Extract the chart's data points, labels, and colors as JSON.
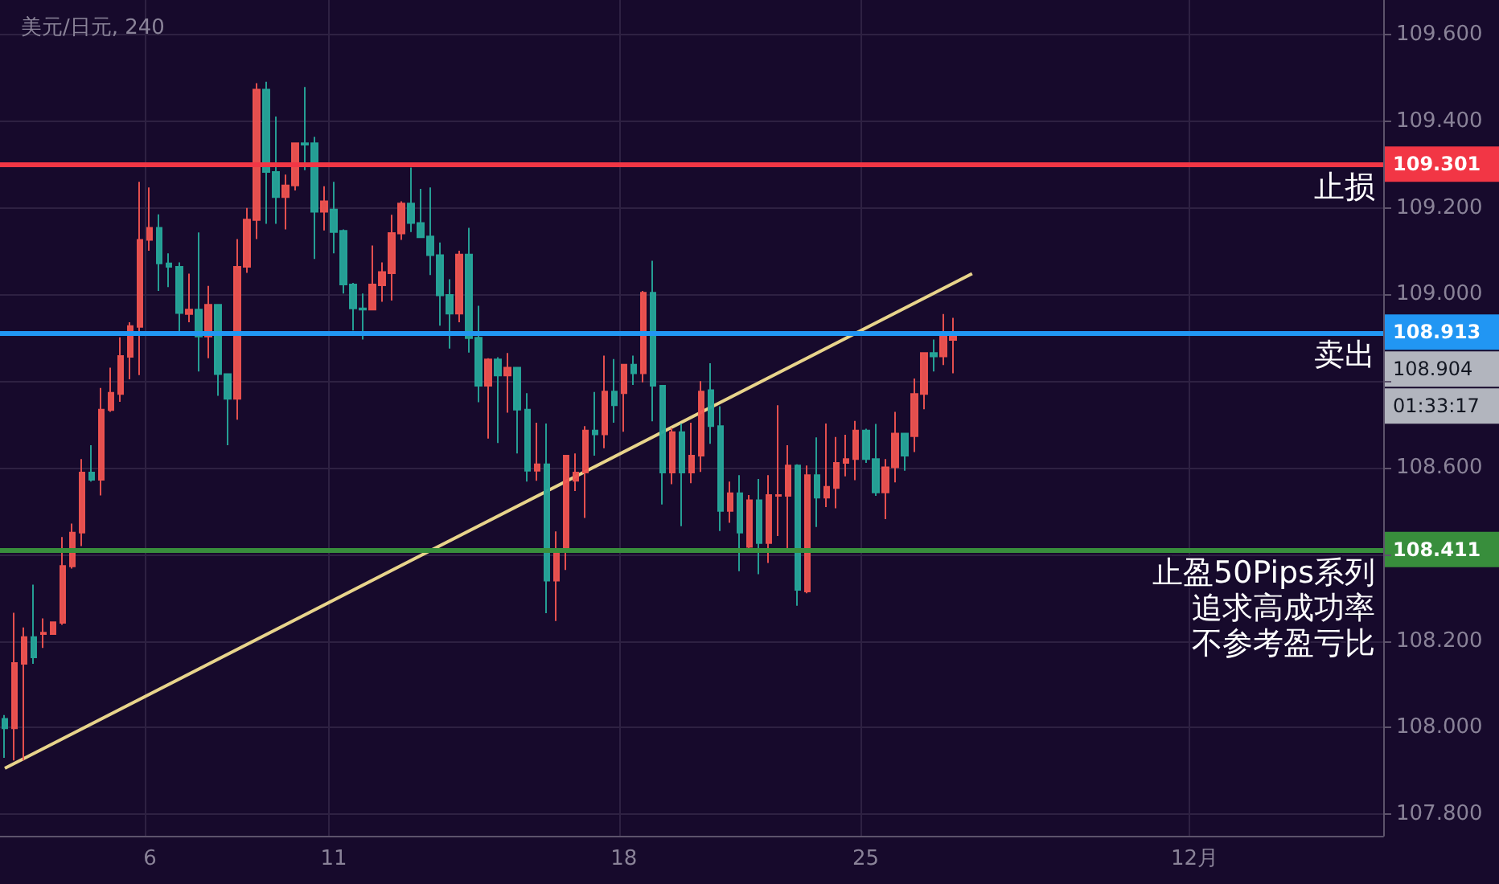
{
  "chart_data": {
    "type": "candlestick",
    "title": "美元/日元, 240",
    "categories": [
      null,
      null,
      null,
      null,
      null,
      null,
      null,
      null,
      null,
      null,
      null,
      null,
      null,
      null,
      null,
      "6",
      null,
      null,
      null,
      null,
      null,
      null,
      null,
      null,
      null,
      null,
      null,
      null,
      null,
      null,
      null,
      null,
      null,
      null,
      "11",
      null,
      null,
      null,
      null,
      null,
      null,
      null,
      null,
      null,
      null,
      null,
      null,
      null,
      null,
      null,
      null,
      null,
      null,
      null,
      null,
      null,
      null,
      null,
      null,
      null,
      null,
      null,
      null,
      null,
      "18",
      null,
      null,
      null,
      null,
      null,
      null,
      null,
      null,
      null,
      null,
      null,
      null,
      null,
      null,
      null,
      null,
      null,
      null,
      null,
      null,
      null,
      null,
      null,
      null,
      "25",
      null,
      null,
      null,
      null,
      null,
      null,
      null,
      null,
      null,
      null,
      null,
      null,
      null,
      null,
      null,
      null,
      null,
      null,
      null,
      null,
      null,
      null,
      null,
      null,
      null,
      null,
      null,
      null,
      null,
      null,
      null,
      null,
      null,
      "12月",
      null,
      null,
      null,
      null,
      null,
      null,
      null,
      null,
      null,
      null,
      null,
      null,
      null,
      null,
      null,
      null,
      null,
      null,
      null
    ],
    "series": [
      {
        "type": "candlestick",
        "ohlc": [
          [
            108.02,
            108.029,
            107.93,
            107.998
          ],
          [
            107.998,
            108.265,
            107.924,
            108.149
          ],
          [
            108.147,
            108.231,
            107.924,
            108.209
          ],
          [
            108.209,
            108.33,
            108.147,
            108.162
          ],
          [
            108.216,
            108.252,
            108.184,
            108.219
          ],
          [
            108.216,
            108.245,
            108.214,
            108.243
          ],
          [
            108.242,
            108.44,
            108.237,
            108.373
          ],
          [
            108.372,
            108.471,
            108.367,
            108.45
          ],
          [
            108.45,
            108.62,
            108.419,
            108.589
          ],
          [
            108.589,
            108.652,
            108.568,
            108.572
          ],
          [
            108.572,
            108.784,
            108.536,
            108.734
          ],
          [
            108.733,
            108.831,
            108.729,
            108.773
          ],
          [
            108.77,
            108.901,
            108.752,
            108.858
          ],
          [
            108.856,
            108.936,
            108.804,
            108.927
          ],
          [
            108.925,
            109.26,
            108.814,
            109.126
          ],
          [
            109.126,
            109.247,
            109.101,
            109.154
          ],
          [
            109.154,
            109.185,
            109.008,
            109.072
          ],
          [
            109.072,
            109.095,
            109.017,
            109.064
          ],
          [
            109.064,
            109.074,
            108.909,
            108.957
          ],
          [
            108.955,
            109.048,
            108.936,
            108.965
          ],
          [
            108.965,
            109.143,
            108.822,
            108.903
          ],
          [
            108.903,
            109.02,
            108.853,
            108.976
          ],
          [
            108.976,
            108.977,
            108.766,
            108.816
          ],
          [
            108.816,
            108.816,
            108.652,
            108.759
          ],
          [
            108.759,
            109.128,
            108.711,
            109.064
          ],
          [
            109.064,
            109.2,
            109.05,
            109.173
          ],
          [
            109.172,
            109.488,
            109.128,
            109.473
          ],
          [
            109.473,
            109.491,
            109.163,
            109.283
          ],
          [
            109.283,
            109.411,
            109.163,
            109.225
          ],
          [
            109.225,
            109.277,
            109.15,
            109.252
          ],
          [
            109.252,
            109.351,
            109.24,
            109.349
          ],
          [
            109.349,
            109.479,
            109.287,
            109.346
          ],
          [
            109.349,
            109.364,
            109.082,
            109.191
          ],
          [
            109.191,
            109.25,
            109.148,
            109.215
          ],
          [
            109.196,
            109.26,
            109.095,
            109.144
          ],
          [
            109.147,
            109.15,
            109.002,
            109.023
          ],
          [
            109.023,
            109.027,
            108.917,
            108.968
          ],
          [
            108.968,
            109.002,
            108.896,
            108.965
          ],
          [
            108.965,
            109.113,
            108.965,
            109.023
          ],
          [
            109.021,
            109.074,
            108.983,
            109.052
          ],
          [
            109.049,
            109.184,
            108.986,
            109.142
          ],
          [
            109.141,
            109.215,
            109.126,
            109.21
          ],
          [
            109.21,
            109.293,
            109.144,
            109.165
          ],
          [
            109.165,
            109.244,
            109.132,
            109.132
          ],
          [
            109.134,
            109.247,
            109.045,
            109.091
          ],
          [
            109.091,
            109.12,
            108.928,
            108.998
          ],
          [
            108.999,
            109.035,
            108.875,
            108.956
          ],
          [
            108.956,
            109.101,
            108.936,
            109.092
          ],
          [
            109.092,
            109.154,
            108.866,
            108.899
          ],
          [
            108.9,
            108.974,
            108.751,
            108.789
          ],
          [
            108.789,
            108.853,
            108.667,
            108.85
          ],
          [
            108.85,
            108.855,
            108.657,
            108.813
          ],
          [
            108.813,
            108.865,
            108.727,
            108.831
          ],
          [
            108.831,
            108.831,
            108.633,
            108.734
          ],
          [
            108.734,
            108.772,
            108.568,
            108.593
          ],
          [
            108.593,
            108.704,
            108.57,
            108.608
          ],
          [
            108.608,
            108.702,
            108.264,
            108.339
          ],
          [
            108.339,
            108.453,
            108.246,
            108.404
          ],
          [
            108.405,
            108.628,
            108.364,
            108.628
          ],
          [
            108.57,
            108.633,
            108.546,
            108.589
          ],
          [
            108.589,
            108.696,
            108.484,
            108.686
          ],
          [
            108.686,
            108.775,
            108.628,
            108.677
          ],
          [
            108.677,
            108.859,
            108.645,
            108.776
          ],
          [
            108.776,
            108.851,
            108.704,
            108.744
          ],
          [
            108.772,
            108.838,
            108.683,
            108.838
          ],
          [
            108.838,
            108.859,
            108.791,
            108.818
          ],
          [
            108.818,
            109.008,
            108.797,
            109.004
          ],
          [
            109.004,
            109.078,
            108.707,
            108.789
          ],
          [
            108.789,
            108.789,
            108.515,
            108.589
          ],
          [
            108.589,
            108.692,
            108.562,
            108.682
          ],
          [
            108.682,
            108.702,
            108.465,
            108.589
          ],
          [
            108.589,
            108.704,
            108.564,
            108.628
          ],
          [
            108.628,
            108.8,
            108.59,
            108.776
          ],
          [
            108.779,
            108.841,
            108.655,
            108.696
          ],
          [
            108.696,
            108.742,
            108.454,
            108.5
          ],
          [
            108.5,
            108.568,
            108.473,
            108.541
          ],
          [
            108.541,
            108.583,
            108.361,
            108.45
          ],
          [
            108.417,
            108.537,
            108.413,
            108.525
          ],
          [
            108.525,
            108.574,
            108.354,
            108.426
          ],
          [
            108.426,
            108.583,
            108.38,
            108.537
          ],
          [
            108.535,
            108.744,
            108.442,
            108.537
          ],
          [
            108.535,
            108.652,
            108.413,
            108.605
          ],
          [
            108.605,
            108.608,
            108.281,
            108.318
          ],
          [
            108.314,
            108.605,
            108.31,
            108.583
          ],
          [
            108.583,
            108.67,
            108.463,
            108.531
          ],
          [
            108.531,
            108.702,
            108.509,
            108.556
          ],
          [
            108.553,
            108.671,
            108.506,
            108.611
          ],
          [
            108.611,
            108.676,
            108.58,
            108.62
          ],
          [
            108.62,
            108.708,
            108.571,
            108.686
          ],
          [
            108.686,
            108.69,
            108.611,
            108.62
          ],
          [
            108.62,
            108.701,
            108.535,
            108.543
          ],
          [
            108.543,
            108.62,
            108.481,
            108.601
          ],
          [
            108.601,
            108.729,
            108.566,
            108.679
          ],
          [
            108.679,
            108.679,
            108.593,
            108.628
          ],
          [
            108.673,
            108.806,
            108.636,
            108.77
          ],
          [
            108.77,
            108.865,
            108.735,
            108.865
          ],
          [
            108.865,
            108.896,
            108.822,
            108.857
          ],
          [
            108.857,
            108.955,
            108.837,
            108.905
          ],
          [
            108.895,
            108.946,
            108.818,
            108.904
          ],
          null,
          null,
          null,
          null,
          null,
          null,
          null,
          null,
          null,
          null,
          null,
          null,
          null,
          null,
          null,
          null,
          null,
          null,
          null,
          null,
          null,
          null,
          null,
          null,
          null,
          null,
          null,
          null,
          null,
          null,
          null,
          null,
          null,
          null,
          null,
          null,
          null,
          null,
          null,
          null,
          null,
          null,
          null,
          null
        ],
        "colors": [
          "#26a69a",
          "#ef5350",
          "#ef5350",
          "#26a69a",
          "#ef5350",
          "#ef5350",
          "#ef5350",
          "#ef5350",
          "#ef5350",
          "#26a69a",
          "#ef5350",
          "#ef5350",
          "#ef5350",
          "#ef5350",
          "#ef5350",
          "#ef5350",
          "#26a69a",
          "#26a69a",
          "#26a69a",
          "#ef5350",
          "#26a69a",
          "#ef5350",
          "#26a69a",
          "#26a69a",
          "#ef5350",
          "#ef5350",
          "#ef5350",
          "#26a69a",
          "#26a69a",
          "#ef5350",
          "#ef5350",
          "#26a69a",
          "#26a69a",
          "#ef5350",
          "#26a69a",
          "#26a69a",
          "#26a69a",
          "#26a69a",
          "#ef5350",
          "#ef5350",
          "#ef5350",
          "#ef5350",
          "#26a69a",
          "#26a69a",
          "#26a69a",
          "#26a69a",
          "#26a69a",
          "#ef5350",
          "#26a69a",
          "#26a69a",
          "#ef5350",
          "#26a69a",
          "#ef5350",
          "#26a69a",
          "#26a69a",
          "#ef5350",
          "#26a69a",
          "#ef5350",
          "#ef5350",
          "#ef5350",
          "#ef5350",
          "#26a69a",
          "#ef5350",
          "#26a69a",
          "#ef5350",
          "#26a69a",
          "#ef5350",
          "#26a69a",
          "#26a69a",
          "#ef5350",
          "#26a69a",
          "#ef5350",
          "#ef5350",
          "#26a69a",
          "#26a69a",
          "#ef5350",
          "#26a69a",
          "#ef5350",
          "#26a69a",
          "#ef5350",
          "#ef5350",
          "#ef5350",
          "#26a69a",
          "#ef5350",
          "#26a69a",
          "#ef5350",
          "#ef5350",
          "#ef5350",
          "#ef5350",
          "#26a69a",
          "#26a69a",
          "#ef5350",
          "#ef5350",
          "#26a69a",
          "#ef5350",
          "#ef5350",
          "#26a69a",
          "#ef5350",
          "#ef5350",
          null,
          null,
          null,
          null,
          null,
          null,
          null,
          null,
          null,
          null,
          null,
          null,
          null,
          null,
          null,
          null,
          null,
          null,
          null,
          null,
          null,
          null,
          null,
          null,
          null,
          null,
          null,
          null,
          null,
          null,
          null,
          null,
          null,
          null,
          null,
          null,
          null,
          null,
          null,
          null,
          null,
          null,
          null,
          null
        ]
      },
      {
        "type": "line",
        "color": "#e8d48b",
        "marker": "none",
        "values": [
          107.906,
          null,
          null,
          null,
          null,
          null,
          null,
          null,
          null,
          null,
          null,
          null,
          null,
          null,
          null,
          null,
          null,
          null,
          null,
          null,
          null,
          null,
          null,
          null,
          null,
          null,
          null,
          null,
          null,
          null,
          null,
          null,
          null,
          null,
          null,
          null,
          null,
          null,
          null,
          null,
          null,
          null,
          null,
          null,
          null,
          null,
          null,
          null,
          null,
          null,
          null,
          null,
          null,
          null,
          null,
          null,
          null,
          null,
          null,
          null,
          null,
          null,
          null,
          null,
          null,
          null,
          null,
          null,
          null,
          null,
          null,
          null,
          null,
          null,
          null,
          null,
          null,
          null,
          null,
          null,
          null,
          null,
          null,
          null,
          null,
          null,
          null,
          null,
          null,
          null,
          null,
          null,
          null,
          null,
          null,
          null,
          null,
          null,
          null,
          null,
          109.048,
          null,
          null,
          null,
          null,
          null,
          null,
          null,
          null,
          null,
          null,
          null,
          null,
          null,
          null,
          null,
          null,
          null,
          null,
          null,
          null,
          null,
          null,
          null,
          null,
          null,
          null,
          null,
          null,
          null,
          null,
          null,
          null,
          null,
          null,
          null,
          null,
          null,
          null,
          null,
          null,
          null,
          null
        ]
      }
    ],
    "ylim": [
      107.75,
      109.68
    ],
    "yticks": [
      {
        "value": 107.8,
        "label": "107.800"
      },
      {
        "value": 108.0,
        "label": "108.000"
      },
      {
        "value": 108.2,
        "label": "108.200"
      },
      {
        "value": 108.4,
        "label": null
      },
      {
        "value": 108.6,
        "label": "108.600"
      },
      {
        "value": 108.8,
        "label": null
      },
      {
        "value": 109.0,
        "label": "109.000"
      },
      {
        "value": 109.2,
        "label": "109.200"
      },
      {
        "value": 109.4,
        "label": "109.400"
      },
      {
        "value": 109.6,
        "label": "109.600"
      }
    ],
    "grid": true,
    "ref_lines": [
      {
        "axis": "y",
        "value": 109.301,
        "label": "止损",
        "color": "#f23645"
      },
      {
        "axis": "y",
        "value": 108.913,
        "label": "卖出",
        "color": "#2196f3"
      },
      {
        "axis": "y",
        "value": 108.411,
        "label": "止盈50Pips系列",
        "color": "#388e3c"
      }
    ],
    "annotations": [
      "109.301",
      "108.913",
      "108.411",
      "108.904",
      "01:33:17",
      "追求高成功率",
      "不参考盈亏比"
    ]
  }
}
